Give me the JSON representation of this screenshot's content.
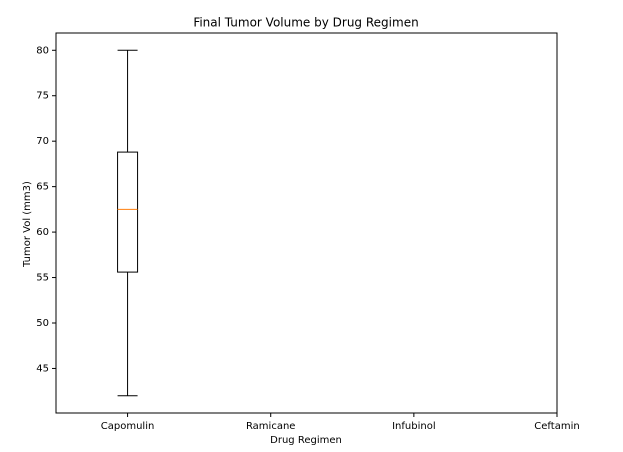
{
  "chart_data": {
    "type": "box",
    "title": "Final Tumor Volume by Drug Regimen",
    "x_label": "Drug Regimen",
    "y_label": "Tumor Vol (mm3)",
    "categories": [
      "Capomulin",
      "Ramicane",
      "Infubinol",
      "Ceftamin"
    ],
    "boxes": [
      {
        "min": 42,
        "q1": 55.6,
        "median": 62.5,
        "q3": 68.8,
        "max": 80
      },
      null,
      null,
      null
    ],
    "box_color": "#000000",
    "median_color": "#ff7f0e",
    "xlim": [
      0.5,
      4
    ],
    "ylim": [
      40.1,
      81.9
    ],
    "yticks": [
      45,
      50,
      55,
      60,
      65,
      70,
      75,
      80
    ],
    "grid": false
  }
}
